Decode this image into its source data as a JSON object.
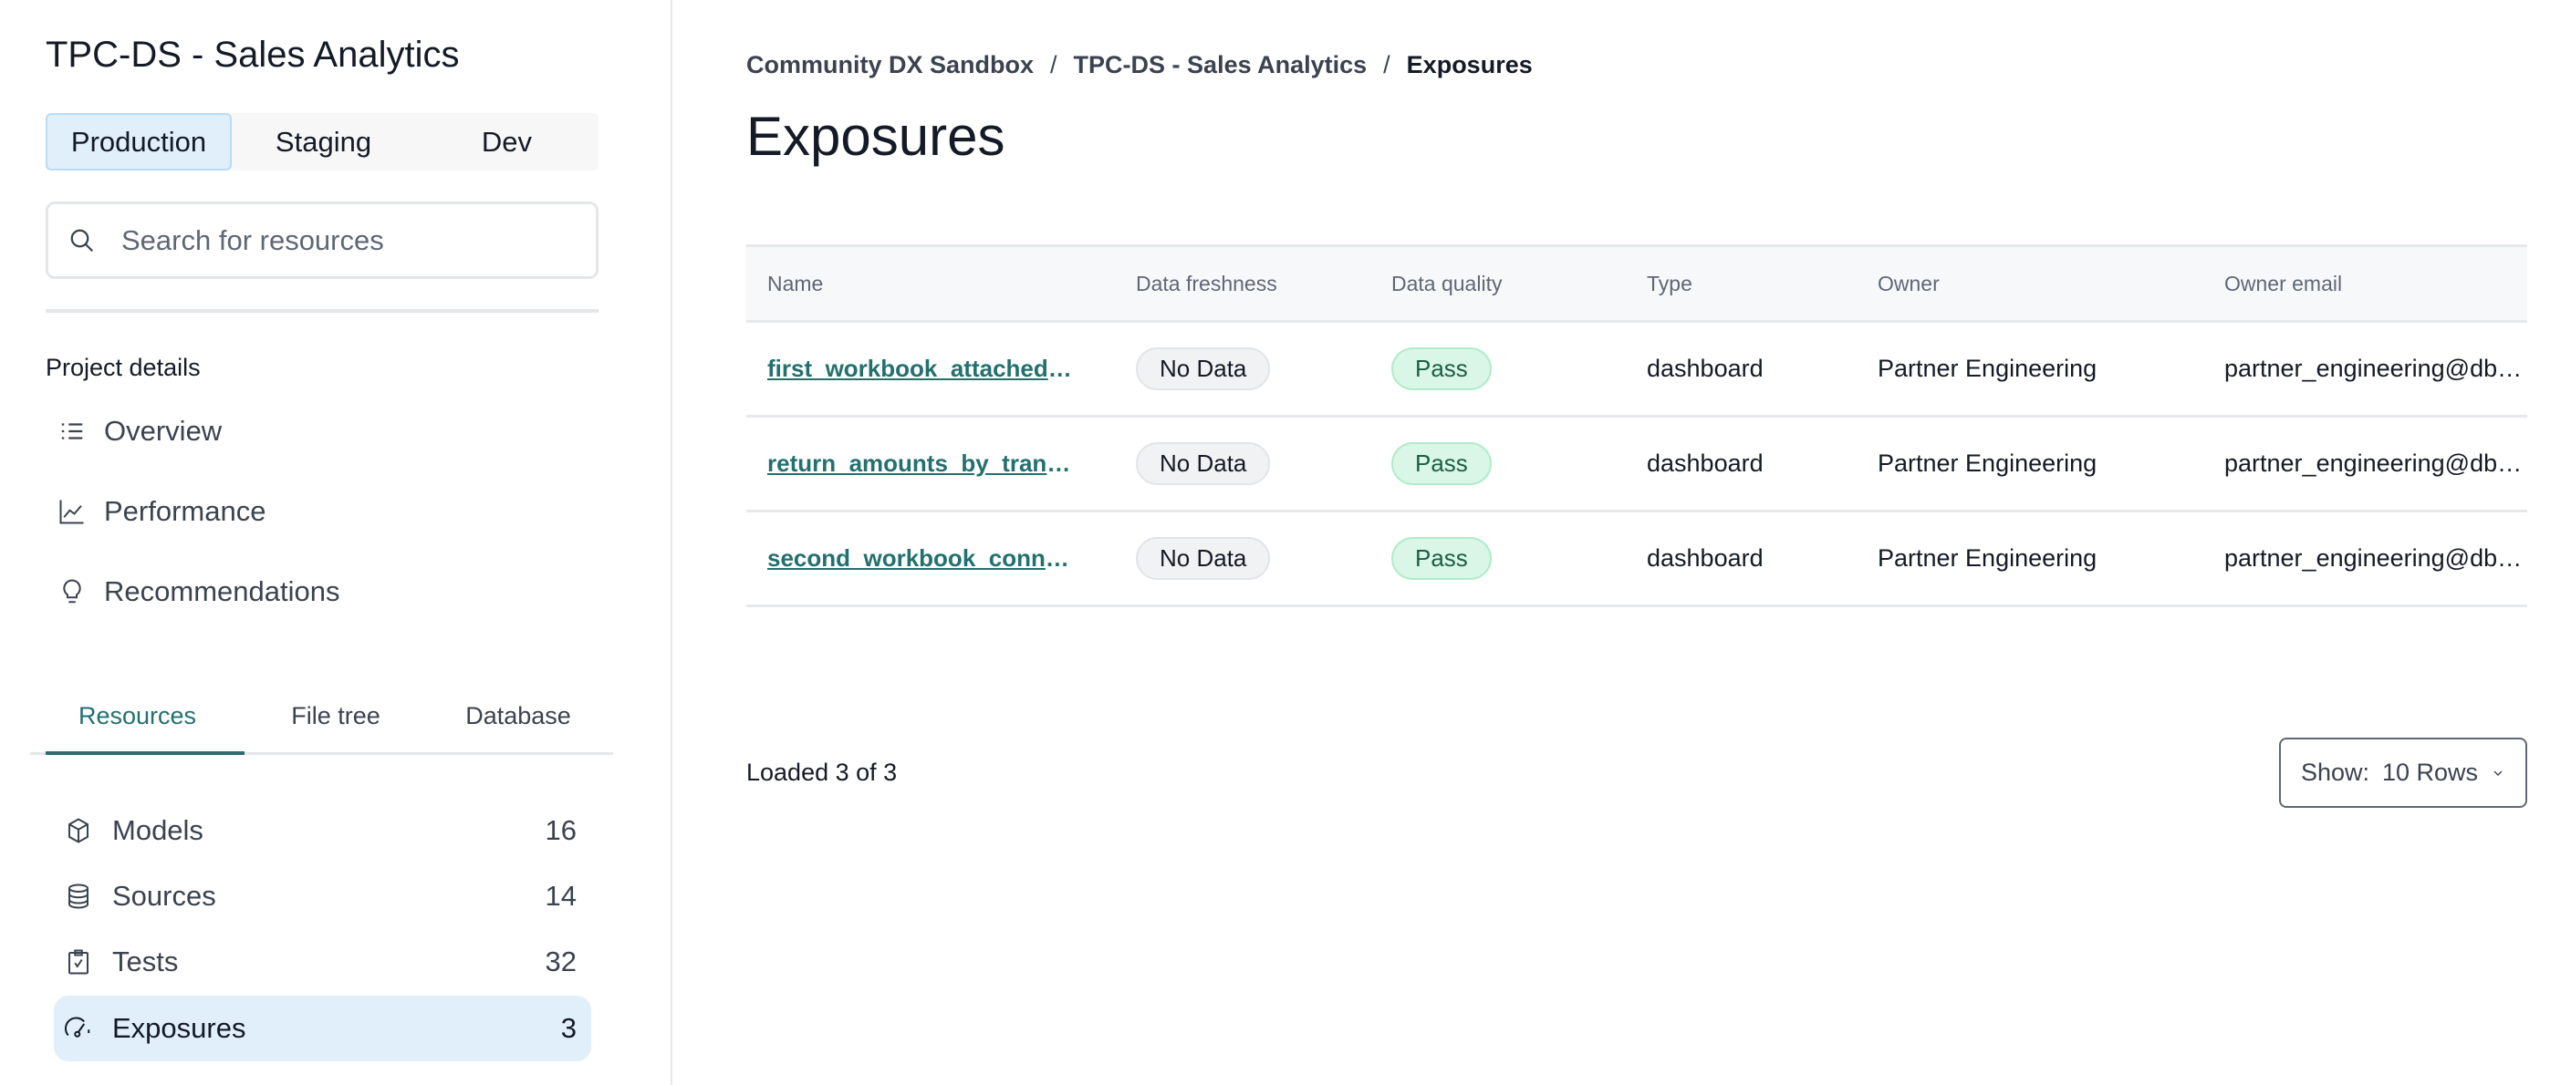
{
  "sidebar": {
    "project_title": "TPC-DS - Sales Analytics",
    "environments": [
      "Production",
      "Staging",
      "Dev"
    ],
    "search_placeholder": "Search for resources",
    "section_label": "Project details",
    "nav": [
      {
        "label": "Overview",
        "icon": "list-icon"
      },
      {
        "label": "Performance",
        "icon": "chart-line-icon"
      },
      {
        "label": "Recommendations",
        "icon": "lightbulb-icon"
      }
    ],
    "resource_tabs": [
      "Resources",
      "File tree",
      "Database"
    ],
    "resources": [
      {
        "label": "Models",
        "count": "16",
        "icon": "cube-icon"
      },
      {
        "label": "Sources",
        "count": "14",
        "icon": "database-icon"
      },
      {
        "label": "Tests",
        "count": "32",
        "icon": "clipboard-check-icon"
      },
      {
        "label": "Exposures",
        "count": "3",
        "icon": "gauge-icon"
      }
    ]
  },
  "main": {
    "breadcrumb": [
      "Community DX Sandbox",
      "TPC-DS - Sales Analytics",
      "Exposures"
    ],
    "title": "Exposures",
    "columns": [
      "Name",
      "Data freshness",
      "Data quality",
      "Type",
      "Owner",
      "Owner email"
    ],
    "rows": [
      {
        "name": "first_workbook_attached_to_tpcds",
        "freshness": "No Data",
        "quality": "Pass",
        "type": "dashboard",
        "owner": "Partner Engineering",
        "email": "partner_engineering@dbtlabs.com"
      },
      {
        "name": "return_amounts_by_transaction",
        "freshness": "No Data",
        "quality": "Pass",
        "type": "dashboard",
        "owner": "Partner Engineering",
        "email": "partner_engineering@dbtlabs.com"
      },
      {
        "name": "second_workbook_connected",
        "freshness": "No Data",
        "quality": "Pass",
        "type": "dashboard",
        "owner": "Partner Engineering",
        "email": "partner_engineering@dbtlabs.com"
      }
    ],
    "loaded": "Loaded 3 of 3",
    "show_label": "Show:",
    "show_value": "10 Rows"
  },
  "colors": {
    "accent": "#23706f",
    "selected_bg": "#e1effb",
    "pass_bg": "#d9f6e6"
  }
}
